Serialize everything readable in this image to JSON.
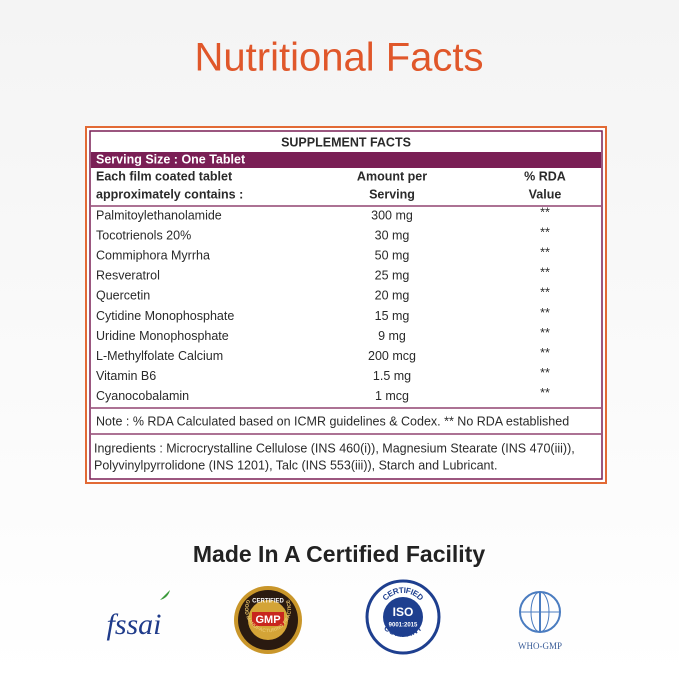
{
  "title": "Nutritional Facts",
  "table": {
    "heading": "SUPPLEMENT FACTS",
    "serving": "Serving Size : One Tablet",
    "columns": [
      [
        "Each film coated tablet",
        "approximately contains :"
      ],
      [
        "Amount per",
        "Serving"
      ],
      [
        "% RDA",
        "Value"
      ]
    ],
    "rows": [
      [
        "Palmitoylethanolamide",
        "300 mg",
        "**"
      ],
      [
        "Tocotrienols 20%",
        "30 mg",
        "**"
      ],
      [
        "Commiphora Myrrha",
        "50  mg",
        "**"
      ],
      [
        "Resveratrol",
        "25  mg",
        "**"
      ],
      [
        "Quercetin",
        "20  mg",
        "**"
      ],
      [
        "Cytidine Monophosphate",
        "15  mg",
        "**"
      ],
      [
        "Uridine Monophosphate",
        "9  mg",
        "**"
      ],
      [
        "L-Methylfolate Calcium",
        "200 mcg",
        "**"
      ],
      [
        "Vitamin B6",
        "1.5  mg",
        "**"
      ],
      [
        "Cyanocobalamin",
        "1 mcg",
        "**"
      ]
    ],
    "note": "Note : % RDA Calculated based on ICMR guidelines & Codex.  ** No RDA established",
    "ingredients": [
      "Ingredients : Microcrystalline Cellulose (INS 460(i)), Magnesium Stearate (INS 470(iii)),",
      "Polyvinylpyrrolidone (INS 1201), Talc (INS 553(iii)), Starch and Lubricant."
    ]
  },
  "certifications": {
    "heading": "Made In A Certified Facility",
    "fssai": "fssai",
    "gmp": {
      "top": "CERTIFIED",
      "main": "GMP",
      "ring": "GOOD MANUFACTURING PRACTICE"
    },
    "iso": {
      "top": "CERTIFIED",
      "main": "ISO",
      "sub": "9001:2015",
      "bottom": "COMPANY"
    },
    "who": "WHO-GMP"
  }
}
